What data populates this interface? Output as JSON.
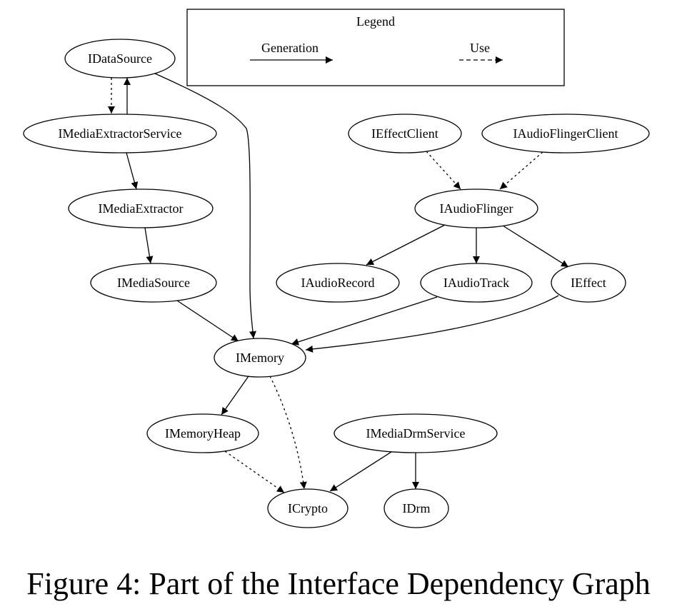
{
  "legend": {
    "title": "Legend",
    "items": [
      {
        "label": "Generation",
        "style": "solid"
      },
      {
        "label": "Use",
        "style": "dashed"
      }
    ]
  },
  "nodes": [
    {
      "id": "IDataSource",
      "label": "IDataSource"
    },
    {
      "id": "IMediaExtractorService",
      "label": "IMediaExtractorService"
    },
    {
      "id": "IMediaExtractor",
      "label": "IMediaExtractor"
    },
    {
      "id": "IMediaSource",
      "label": "IMediaSource"
    },
    {
      "id": "IMemory",
      "label": "IMemory"
    },
    {
      "id": "IMemoryHeap",
      "label": "IMemoryHeap"
    },
    {
      "id": "ICrypto",
      "label": "ICrypto"
    },
    {
      "id": "IMediaDrmService",
      "label": "IMediaDrmService"
    },
    {
      "id": "IDrm",
      "label": "IDrm"
    },
    {
      "id": "IEffectClient",
      "label": "IEffectClient"
    },
    {
      "id": "IAudioFlingerClient",
      "label": "IAudioFlingerClient"
    },
    {
      "id": "IAudioFlinger",
      "label": "IAudioFlinger"
    },
    {
      "id": "IAudioRecord",
      "label": "IAudioRecord"
    },
    {
      "id": "IAudioTrack",
      "label": "IAudioTrack"
    },
    {
      "id": "IEffect",
      "label": "IEffect"
    }
  ],
  "edges": [
    {
      "from": "IDataSource",
      "to": "IMediaExtractorService",
      "style": "dashed"
    },
    {
      "from": "IMediaExtractorService",
      "to": "IDataSource",
      "style": "solid"
    },
    {
      "from": "IDataSource",
      "to": "IMemory",
      "style": "solid"
    },
    {
      "from": "IMediaExtractorService",
      "to": "IMediaExtractor",
      "style": "solid"
    },
    {
      "from": "IMediaExtractor",
      "to": "IMediaSource",
      "style": "solid"
    },
    {
      "from": "IMediaSource",
      "to": "IMemory",
      "style": "solid"
    },
    {
      "from": "IEffectClient",
      "to": "IAudioFlinger",
      "style": "dashed"
    },
    {
      "from": "IAudioFlingerClient",
      "to": "IAudioFlinger",
      "style": "dashed"
    },
    {
      "from": "IAudioFlinger",
      "to": "IAudioRecord",
      "style": "solid"
    },
    {
      "from": "IAudioFlinger",
      "to": "IAudioTrack",
      "style": "solid"
    },
    {
      "from": "IAudioFlinger",
      "to": "IEffect",
      "style": "solid"
    },
    {
      "from": "IAudioTrack",
      "to": "IMemory",
      "style": "solid"
    },
    {
      "from": "IEffect",
      "to": "IMemory",
      "style": "solid"
    },
    {
      "from": "IMemory",
      "to": "IMemoryHeap",
      "style": "solid"
    },
    {
      "from": "IMemory",
      "to": "ICrypto",
      "style": "dashed"
    },
    {
      "from": "IMemoryHeap",
      "to": "ICrypto",
      "style": "dashed"
    },
    {
      "from": "IMediaDrmService",
      "to": "ICrypto",
      "style": "solid"
    },
    {
      "from": "IMediaDrmService",
      "to": "IDrm",
      "style": "solid"
    }
  ],
  "caption": "Figure 4: Part of the Interface Dependency Graph"
}
